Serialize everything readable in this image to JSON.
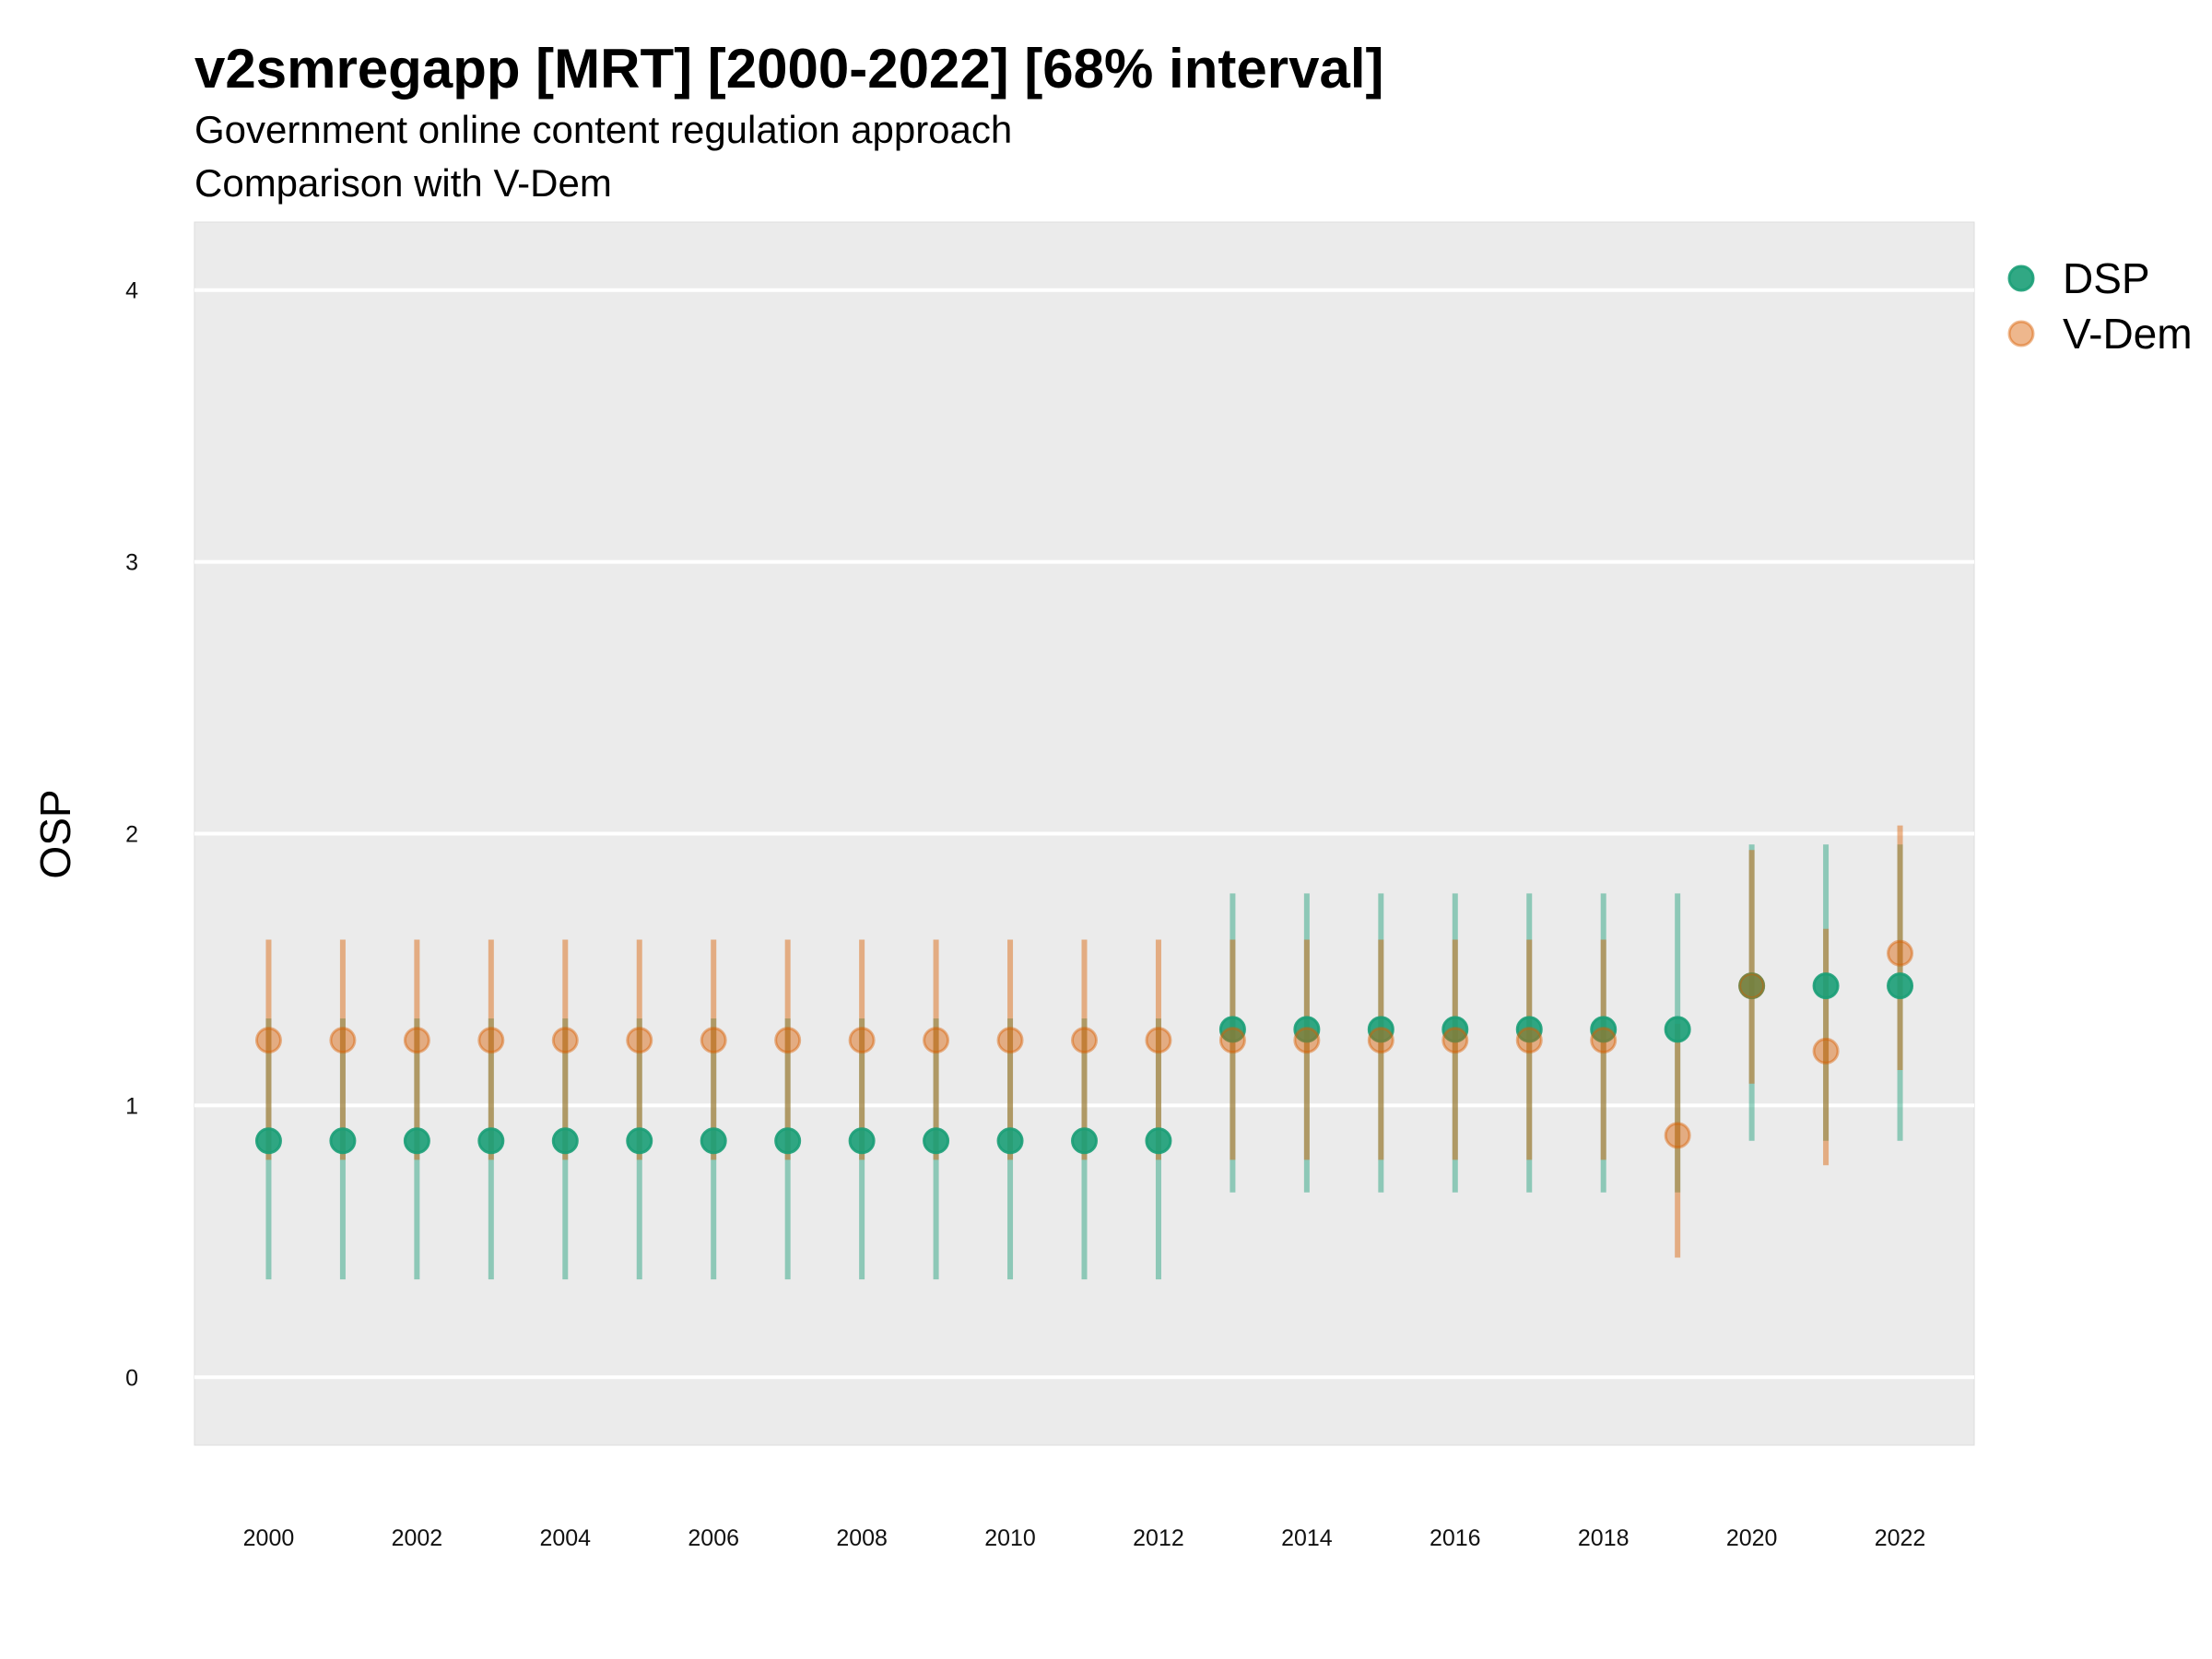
{
  "chart_data": {
    "type": "scatter",
    "title": "v2smregapp [MRT] [2000-2022] [68% interval]",
    "subtitle": "Government online content regulation approach",
    "subtitle2": "Comparison with V-Dem",
    "xlabel": "",
    "ylabel": "OSP",
    "ylim": [
      -0.25,
      4.25
    ],
    "xlim": [
      1999,
      2023
    ],
    "y_ticks": [
      0,
      1,
      2,
      3,
      4
    ],
    "x_ticks": [
      2000,
      2002,
      2004,
      2006,
      2008,
      2010,
      2012,
      2014,
      2016,
      2018,
      2020,
      2022
    ],
    "grid": true,
    "legend_position": "right",
    "series": [
      {
        "name": "DSP",
        "color": "#1b9e77",
        "points": [
          {
            "x": 2000,
            "y": 0.87,
            "low": 0.36,
            "high": 1.32
          },
          {
            "x": 2001,
            "y": 0.87,
            "low": 0.36,
            "high": 1.32
          },
          {
            "x": 2002,
            "y": 0.87,
            "low": 0.36,
            "high": 1.32
          },
          {
            "x": 2003,
            "y": 0.87,
            "low": 0.36,
            "high": 1.32
          },
          {
            "x": 2004,
            "y": 0.87,
            "low": 0.36,
            "high": 1.32
          },
          {
            "x": 2005,
            "y": 0.87,
            "low": 0.36,
            "high": 1.32
          },
          {
            "x": 2006,
            "y": 0.87,
            "low": 0.36,
            "high": 1.32
          },
          {
            "x": 2007,
            "y": 0.87,
            "low": 0.36,
            "high": 1.32
          },
          {
            "x": 2008,
            "y": 0.87,
            "low": 0.36,
            "high": 1.32
          },
          {
            "x": 2009,
            "y": 0.87,
            "low": 0.36,
            "high": 1.32
          },
          {
            "x": 2010,
            "y": 0.87,
            "low": 0.36,
            "high": 1.32
          },
          {
            "x": 2011,
            "y": 0.87,
            "low": 0.36,
            "high": 1.32
          },
          {
            "x": 2012,
            "y": 0.87,
            "low": 0.36,
            "high": 1.32
          },
          {
            "x": 2013,
            "y": 1.28,
            "low": 0.68,
            "high": 1.78
          },
          {
            "x": 2014,
            "y": 1.28,
            "low": 0.68,
            "high": 1.78
          },
          {
            "x": 2015,
            "y": 1.28,
            "low": 0.68,
            "high": 1.78
          },
          {
            "x": 2016,
            "y": 1.28,
            "low": 0.68,
            "high": 1.78
          },
          {
            "x": 2017,
            "y": 1.28,
            "low": 0.68,
            "high": 1.78
          },
          {
            "x": 2018,
            "y": 1.28,
            "low": 0.68,
            "high": 1.78
          },
          {
            "x": 2019,
            "y": 1.28,
            "low": 0.68,
            "high": 1.78
          },
          {
            "x": 2020,
            "y": 1.44,
            "low": 0.87,
            "high": 1.96
          },
          {
            "x": 2021,
            "y": 1.44,
            "low": 0.87,
            "high": 1.96
          },
          {
            "x": 2022,
            "y": 1.44,
            "low": 0.87,
            "high": 1.96
          }
        ]
      },
      {
        "name": "V-Dem",
        "color": "#d95f02",
        "points": [
          {
            "x": 2000,
            "y": 1.24,
            "low": 0.8,
            "high": 1.61
          },
          {
            "x": 2001,
            "y": 1.24,
            "low": 0.8,
            "high": 1.61
          },
          {
            "x": 2002,
            "y": 1.24,
            "low": 0.8,
            "high": 1.61
          },
          {
            "x": 2003,
            "y": 1.24,
            "low": 0.8,
            "high": 1.61
          },
          {
            "x": 2004,
            "y": 1.24,
            "low": 0.8,
            "high": 1.61
          },
          {
            "x": 2005,
            "y": 1.24,
            "low": 0.8,
            "high": 1.61
          },
          {
            "x": 2006,
            "y": 1.24,
            "low": 0.8,
            "high": 1.61
          },
          {
            "x": 2007,
            "y": 1.24,
            "low": 0.8,
            "high": 1.61
          },
          {
            "x": 2008,
            "y": 1.24,
            "low": 0.8,
            "high": 1.61
          },
          {
            "x": 2009,
            "y": 1.24,
            "low": 0.8,
            "high": 1.61
          },
          {
            "x": 2010,
            "y": 1.24,
            "low": 0.8,
            "high": 1.61
          },
          {
            "x": 2011,
            "y": 1.24,
            "low": 0.8,
            "high": 1.61
          },
          {
            "x": 2012,
            "y": 1.24,
            "low": 0.8,
            "high": 1.61
          },
          {
            "x": 2013,
            "y": 1.24,
            "low": 0.8,
            "high": 1.61
          },
          {
            "x": 2014,
            "y": 1.24,
            "low": 0.8,
            "high": 1.61
          },
          {
            "x": 2015,
            "y": 1.24,
            "low": 0.8,
            "high": 1.61
          },
          {
            "x": 2016,
            "y": 1.24,
            "low": 0.8,
            "high": 1.61
          },
          {
            "x": 2017,
            "y": 1.24,
            "low": 0.8,
            "high": 1.61
          },
          {
            "x": 2018,
            "y": 1.24,
            "low": 0.8,
            "high": 1.61
          },
          {
            "x": 2019,
            "y": 0.89,
            "low": 0.44,
            "high": 1.3
          },
          {
            "x": 2020,
            "y": 1.44,
            "low": 1.08,
            "high": 1.94
          },
          {
            "x": 2021,
            "y": 1.2,
            "low": 0.78,
            "high": 1.65
          },
          {
            "x": 2022,
            "y": 1.56,
            "low": 1.13,
            "high": 2.03
          }
        ]
      }
    ]
  }
}
